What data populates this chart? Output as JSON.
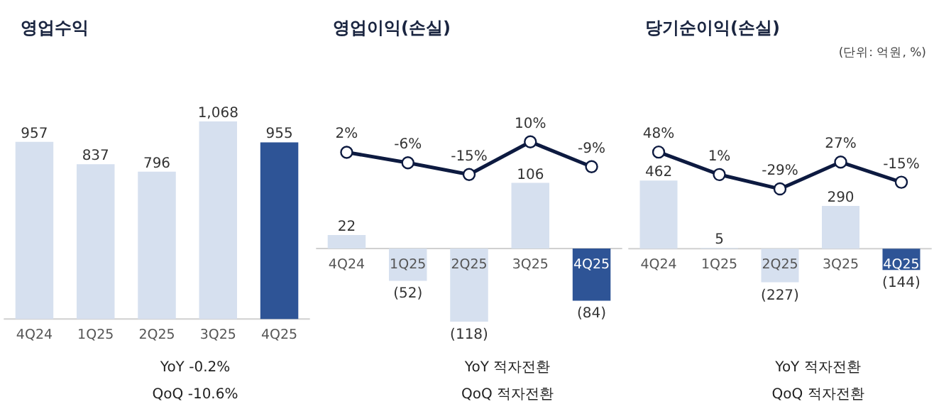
{
  "chart_data": [
    {
      "type": "bar",
      "title": "영업수익",
      "categories": [
        "4Q24",
        "1Q25",
        "2Q25",
        "3Q25",
        "4Q25"
      ],
      "values": [
        957,
        837,
        796,
        1068,
        955
      ],
      "value_labels": [
        "957",
        "837",
        "796",
        "1,068",
        "955"
      ],
      "colors": [
        "#d6e0ef",
        "#d6e0ef",
        "#d6e0ef",
        "#d6e0ef",
        "#2e5496"
      ],
      "ylim": [
        -490,
        1720
      ],
      "tick_labels": false,
      "annotations": [
        "YoY  -0.2%",
        "QoQ  -10.6%"
      ]
    },
    {
      "type": "bar",
      "title": "영업이익(손실)",
      "categories": [
        "4Q24",
        "1Q25",
        "2Q25",
        "3Q25",
        "4Q25"
      ],
      "series": [
        {
          "type": "bar",
          "values": [
            22,
            -52,
            -118,
            106,
            -84
          ],
          "value_labels": [
            "22",
            "(52)",
            "(118)",
            "106",
            "(84)"
          ],
          "colors": [
            "#d6e0ef",
            "#d6e0ef",
            "#d6e0ef",
            "#d6e0ef",
            "#2e5496"
          ]
        },
        {
          "type": "line",
          "axis": "y2",
          "color": "#0d1a40",
          "values": [
            2,
            -6,
            -15,
            10,
            -9
          ],
          "value_labels": [
            "2%",
            "-6%",
            "-15%",
            "10%",
            "-9%"
          ]
        }
      ],
      "ylim": [
        -260,
        400
      ],
      "y2lim": [
        -195,
        118
      ],
      "tick_labels": false,
      "marker": "circle",
      "annotations": [
        "YoY  적자전환",
        "QoQ  적자전환"
      ]
    },
    {
      "type": "bar",
      "title": "당기순이익(손실)",
      "subtitle": "(단위: 억원, %)",
      "categories": [
        "4Q24",
        "1Q25",
        "2Q25",
        "3Q25",
        "4Q25"
      ],
      "series": [
        {
          "type": "bar",
          "values": [
            462,
            5,
            -227,
            290,
            -144
          ],
          "value_labels": [
            "462",
            "5",
            "(227)",
            "290",
            "(144)"
          ],
          "colors": [
            "#d6e0ef",
            "#d6e0ef",
            "#d6e0ef",
            "#d6e0ef",
            "#2e5496"
          ]
        },
        {
          "type": "line",
          "axis": "y2",
          "color": "#0d1a40",
          "values": [
            48,
            1,
            -29,
            27,
            -15
          ],
          "value_labels": [
            "48%",
            "1%",
            "-29%",
            "27%",
            "-15%"
          ]
        }
      ],
      "ylim": [
        -1090,
        1680
      ],
      "y2lim": [
        -490,
        364
      ],
      "tick_labels": false,
      "marker": "circle",
      "annotations": [
        "YoY  적자전환",
        "QoQ  적자전환"
      ]
    }
  ]
}
